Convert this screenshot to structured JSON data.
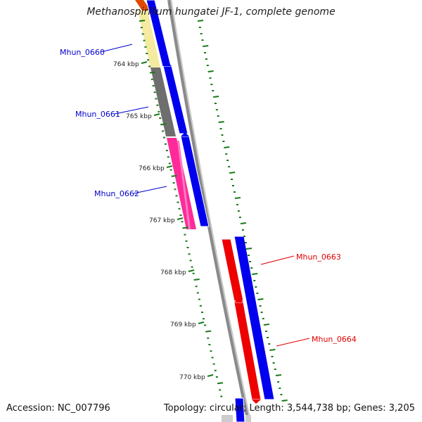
{
  "title": "Methanospirillum hungatei JF-1, complete genome",
  "footer": {
    "accession": "Accession: NC_007796",
    "summary": "Topology: circular; Length: 3,544,738 bp; Genes: 3,205"
  },
  "scale_labels": [
    "764 kbp",
    "765 kbp",
    "766 kbp",
    "767 kbp",
    "768 kbp",
    "769 kbp",
    "770 kbp"
  ],
  "genes": [
    {
      "id": "Mhun_0660",
      "strand": "forward",
      "color": "#0000cc"
    },
    {
      "id": "Mhun_0661",
      "strand": "forward",
      "color": "#0000cc"
    },
    {
      "id": "Mhun_0662",
      "strand": "forward",
      "color": "#0000cc"
    },
    {
      "id": "Mhun_0663",
      "strand": "reverse",
      "color": "#e00000"
    },
    {
      "id": "Mhun_0664",
      "strand": "reverse",
      "color": "#e00000"
    }
  ],
  "colors": {
    "backbone": "#8a8a8a",
    "cds_forward": "#0000ee",
    "cds_reverse": "#ee0000",
    "ticks": "#1a7a1a",
    "cog_yellow": "#f4eaa0",
    "cog_gray": "#6e6e6e",
    "cog_pink": "#ff2a9a"
  }
}
